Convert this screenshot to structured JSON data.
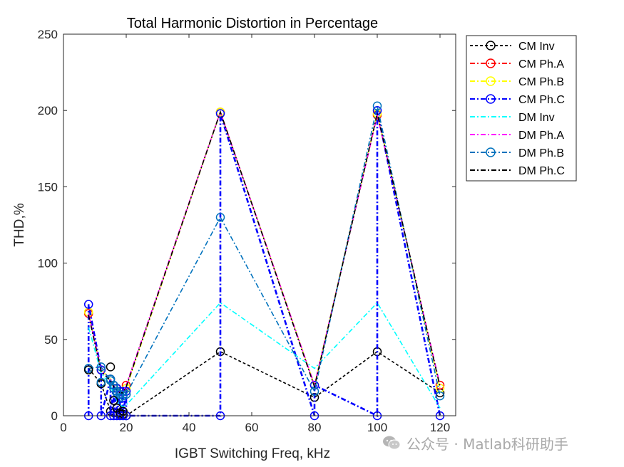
{
  "chart_data": {
    "type": "line",
    "title": "Total Harmonic Distortion in Percentage",
    "xlabel": "IGBT Switching Freq, kHz",
    "ylabel": "THD,%",
    "xlim": [
      0,
      125
    ],
    "ylim": [
      0,
      250
    ],
    "xticks": [
      0,
      20,
      40,
      60,
      80,
      100,
      120
    ],
    "yticks": [
      0,
      50,
      100,
      150,
      200,
      250
    ],
    "legend_position": "outside-top-right",
    "series": [
      {
        "name": "CM Inv",
        "color": "#000000",
        "dash": "dashed",
        "marker": "circle",
        "x": [
          8,
          12,
          15,
          16,
          17,
          18,
          19,
          20,
          50,
          80,
          100,
          120
        ],
        "y": [
          31,
          21,
          3,
          2,
          2,
          1,
          1,
          0,
          42,
          12,
          42,
          15
        ]
      },
      {
        "name": "CM Ph.A",
        "color": "#ff0000",
        "dash": "dashdot",
        "marker": "circle",
        "x": [
          8,
          12,
          15,
          16,
          17,
          18,
          19,
          20,
          50,
          80,
          100,
          120
        ],
        "y": [
          67,
          30,
          24,
          20,
          18,
          16,
          16,
          20,
          199,
          20,
          197,
          20
        ]
      },
      {
        "name": "CM Ph.B",
        "color": "#ffff00",
        "dash": "dashdot",
        "marker": "circle",
        "x": [
          8,
          12,
          15,
          16,
          17,
          18,
          19,
          20,
          50,
          80,
          100,
          120
        ],
        "y": [
          68,
          30,
          24,
          20,
          18,
          16,
          16,
          18,
          199,
          20,
          198,
          18
        ]
      },
      {
        "name": "CM Ph.C",
        "color": "#0000ff",
        "dash": "dashdot",
        "marker": "circle",
        "x": [
          8,
          8,
          12,
          12,
          15,
          15,
          16,
          16,
          17,
          17,
          18,
          18,
          19,
          19,
          20,
          20,
          50,
          50,
          80,
          80,
          100,
          100,
          120
        ],
        "y": [
          0,
          73,
          30,
          0,
          24,
          0,
          20,
          0,
          18,
          0,
          16,
          0,
          16,
          0,
          16,
          0,
          0,
          198,
          0,
          20,
          0,
          200,
          0
        ]
      },
      {
        "name": "DM Inv",
        "color": "#00ffff",
        "dash": "dashdot",
        "marker": "none",
        "x": [
          8,
          12,
          15,
          16,
          17,
          18,
          19,
          20,
          50,
          80,
          100,
          120
        ],
        "y": [
          58,
          28,
          20,
          14,
          10,
          7,
          6,
          7,
          74,
          31,
          74,
          5
        ]
      },
      {
        "name": "DM Ph.A",
        "color": "#ff00ff",
        "dash": "dashdot",
        "marker": "none",
        "x": [
          8,
          12,
          15,
          16,
          17,
          18,
          19,
          20,
          50,
          80,
          100,
          120
        ],
        "y": [
          67,
          30,
          24,
          20,
          18,
          16,
          16,
          20,
          199,
          20,
          197,
          20
        ]
      },
      {
        "name": "DM Ph.B",
        "color": "#0072bd",
        "dash": "dashdot",
        "marker": "circle",
        "x": [
          8,
          12,
          15,
          16,
          17,
          18,
          19,
          20,
          50,
          80,
          100,
          120
        ],
        "y": [
          31,
          32,
          23,
          20,
          15,
          12,
          13,
          14,
          130,
          16,
          203,
          13
        ]
      },
      {
        "name": "DM Ph.C",
        "color": "#000000",
        "dash": "dashdot",
        "marker": "none",
        "x": [
          8,
          12,
          15,
          16,
          17,
          18,
          19,
          20,
          50,
          80,
          100,
          120
        ],
        "y": [
          66,
          29,
          23,
          19,
          17,
          15,
          15,
          19,
          199,
          19,
          198,
          19
        ]
      }
    ],
    "extra_markers": [
      {
        "series": "CM Inv",
        "x": [
          8,
          12,
          15,
          16,
          17,
          18,
          19
        ],
        "y": [
          30,
          21,
          32,
          10,
          5,
          2,
          3
        ]
      },
      {
        "series": "DM Ph.B",
        "x": [
          12,
          15,
          16,
          17,
          18
        ],
        "y": [
          22,
          24,
          18,
          16,
          14
        ]
      }
    ]
  },
  "watermark": {
    "text": "公众号 · Matlab科研助手",
    "icon": "wechat-icon",
    "color": "#a9a9a9"
  }
}
